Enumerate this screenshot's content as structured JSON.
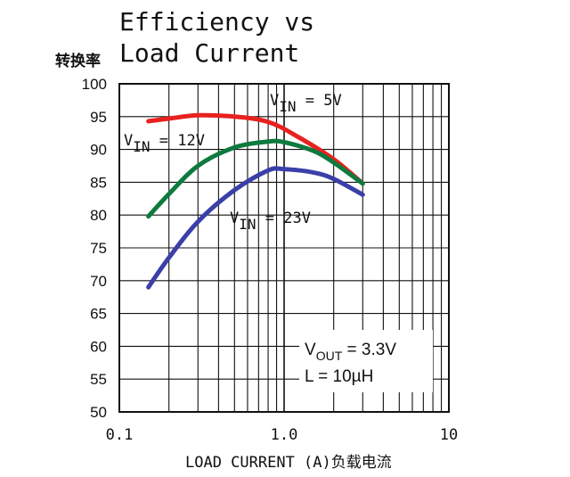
{
  "chart_data": {
    "type": "line",
    "title_lines": [
      "Efficiency vs",
      "Load Current"
    ],
    "ylabel": "转换率",
    "xlabel": "LOAD CURRENT (A)负载电流",
    "x_scale": "log",
    "xlim": [
      0.1,
      10
    ],
    "ylim": [
      50,
      100
    ],
    "x_ticks": [
      "0.1",
      "1.0",
      "10"
    ],
    "y_ticks": [
      "50",
      "55",
      "60",
      "65",
      "70",
      "75",
      "80",
      "85",
      "90",
      "95",
      "100"
    ],
    "grid": true,
    "series": [
      {
        "name": "VIN = 5V",
        "label_main": "V",
        "label_sub": "IN",
        "label_rest": " = 5V",
        "color": "#e8221f",
        "x": [
          0.15,
          0.2,
          0.3,
          0.5,
          0.8,
          1.2,
          2.0,
          3.0
        ],
        "y": [
          94.3,
          94.7,
          95.2,
          95.0,
          94.2,
          92.0,
          88.5,
          84.8
        ]
      },
      {
        "name": "VIN = 12V",
        "label_main": "V",
        "label_sub": "IN",
        "label_rest": " = 12V",
        "color": "#0e7a3e",
        "x": [
          0.15,
          0.2,
          0.3,
          0.5,
          0.8,
          1.0,
          1.5,
          2.0,
          3.0
        ],
        "y": [
          79.8,
          83.2,
          87.5,
          90.3,
          91.2,
          91.1,
          89.8,
          88.0,
          84.8
        ]
      },
      {
        "name": "VIN = 23V",
        "label_main": "V",
        "label_sub": "IN",
        "label_rest": " = 23V",
        "color": "#3b3fa8",
        "x": [
          0.15,
          0.2,
          0.3,
          0.5,
          0.8,
          1.0,
          1.5,
          2.0,
          3.0
        ],
        "y": [
          69.0,
          73.5,
          79.0,
          83.8,
          86.8,
          87.0,
          86.5,
          85.5,
          83.1
        ]
      }
    ],
    "annotation": {
      "line1_main": "V",
      "line1_sub": "OUT",
      "line1_rest": " = 3.3V",
      "line2": "L = 10µH"
    }
  }
}
